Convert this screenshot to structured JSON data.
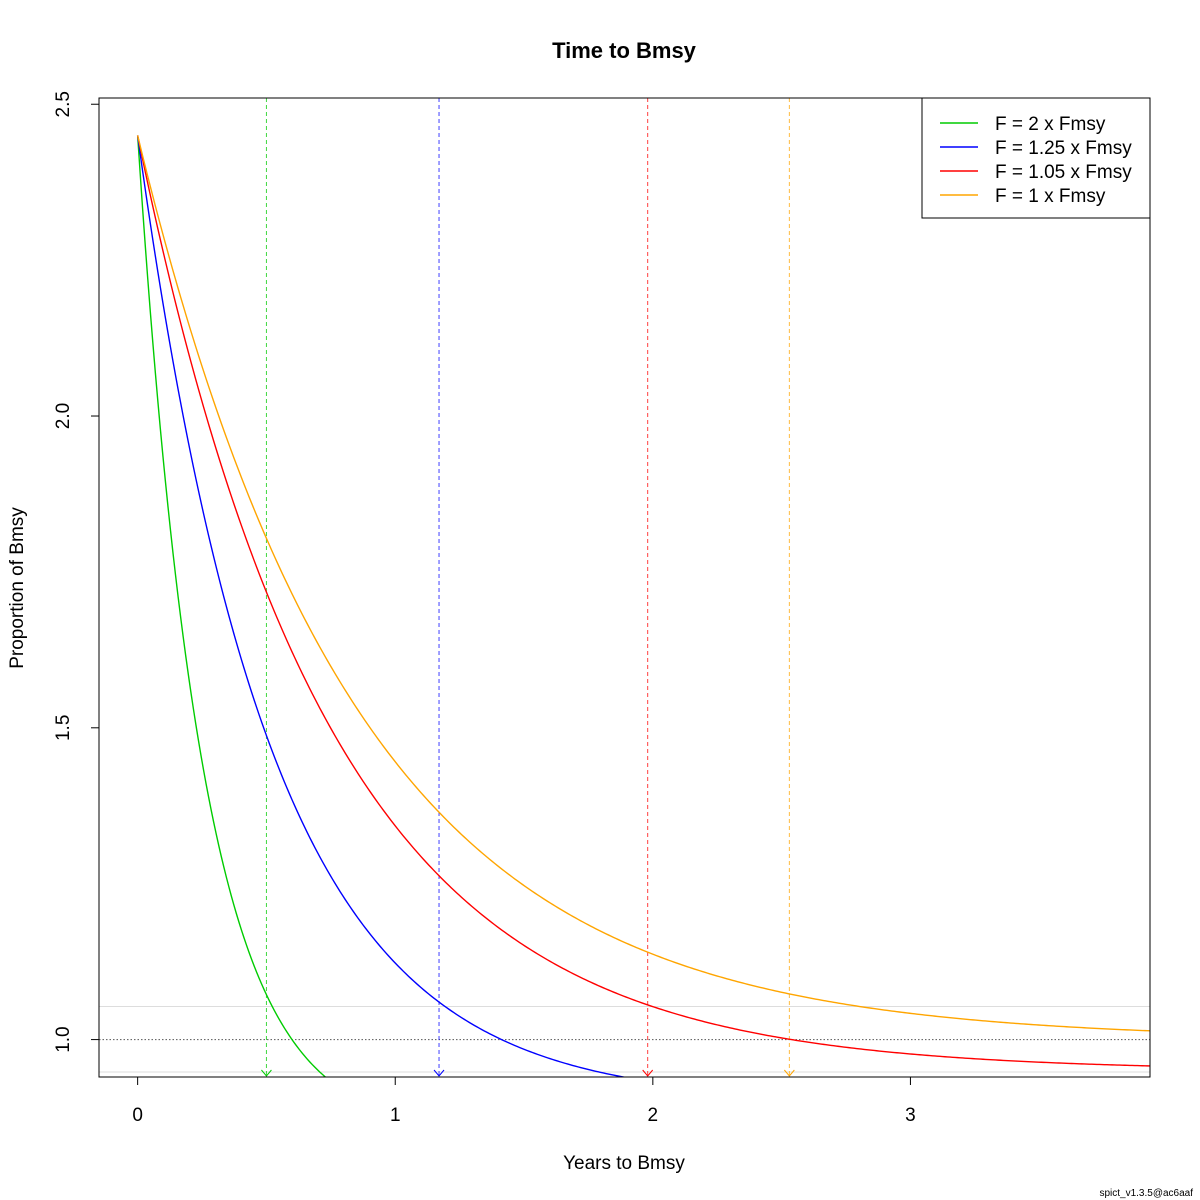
{
  "chart_data": {
    "type": "line",
    "title": "Time to Bmsy",
    "xlabel": "Years to Bmsy",
    "ylabel": "Proportion of Bmsy",
    "xlim": [
      -0.15,
      3.93
    ],
    "ylim": [
      0.94,
      2.51
    ],
    "xticks": [
      0,
      1,
      2,
      3
    ],
    "yticks": [
      1.0,
      1.5,
      2.0,
      2.5
    ],
    "xtick_labels": [
      "0",
      "1",
      "2",
      "3"
    ],
    "ytick_labels": [
      "1.0",
      "1.5",
      "2.0",
      "2.5"
    ],
    "grid": false,
    "legend_position": "top-right",
    "start_value": 2.45,
    "series": [
      {
        "name": "F = 2 x Fmsy",
        "color": "#00cc00",
        "asymptote": 0.85,
        "rate": 3.95,
        "target_time": 0.5
      },
      {
        "name": "F = 1.25 x Fmsy",
        "color": "#0000ff",
        "asymptote": 0.9,
        "rate": 1.94,
        "target_time": 1.17
      },
      {
        "name": "F = 1.05 x Fmsy",
        "color": "#ff0000",
        "asymptote": 0.95,
        "rate": 1.34,
        "target_time": 1.98
      },
      {
        "name": "F = 1 x Fmsy",
        "color": "#ffa500",
        "asymptote": 1.0,
        "rate": 1.18,
        "target_time": 2.53
      }
    ],
    "reference_lines": [
      {
        "y": 1.0,
        "style": "dotted",
        "color": "#555555"
      },
      {
        "y": 1.053,
        "style": "solid",
        "color": "#dddddd"
      },
      {
        "y": 0.948,
        "style": "solid",
        "color": "#dddddd"
      }
    ]
  },
  "footnote": "spict_v1.3.5@ac6aaf"
}
